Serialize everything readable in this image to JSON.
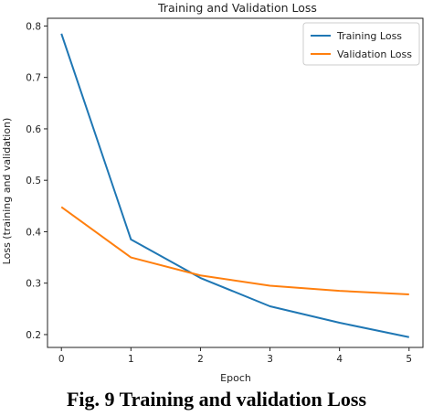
{
  "chart_data": {
    "type": "line",
    "title": "Training and Validation Loss",
    "xlabel": "Epoch",
    "ylabel": "Loss (training and validation)",
    "x": [
      0,
      1,
      2,
      3,
      4,
      5
    ],
    "xlim": [
      -0.2,
      5.2
    ],
    "ylim": [
      0.175,
      0.815
    ],
    "xticks": [
      0,
      1,
      2,
      3,
      4,
      5
    ],
    "yticks": [
      0.2,
      0.3,
      0.4,
      0.5,
      0.6,
      0.7,
      0.8
    ],
    "ytick_labels": [
      "0.2",
      "0.3",
      "0.4",
      "0.5",
      "0.6",
      "0.7",
      "0.8"
    ],
    "grid": false,
    "legend_position": "top-right",
    "series": [
      {
        "name": "Training Loss",
        "color": "#1f77b4",
        "values": [
          0.785,
          0.385,
          0.31,
          0.255,
          0.223,
          0.195
        ]
      },
      {
        "name": "Validation Loss",
        "color": "#ff7f0e",
        "values": [
          0.448,
          0.35,
          0.315,
          0.295,
          0.285,
          0.278
        ]
      }
    ]
  },
  "caption": "Fig. 9 Training  and validation Loss"
}
